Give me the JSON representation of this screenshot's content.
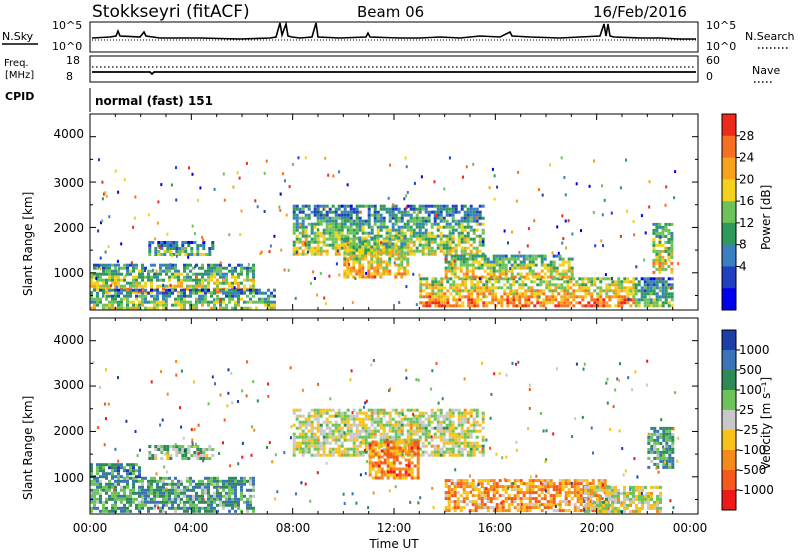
{
  "header": {
    "station": "Stokkseyri (fitACF)",
    "beam": "Beam 06",
    "date": "16/Feb/2016"
  },
  "top_panels": {
    "nsky_label": "N.Sky",
    "nsky_ticks": [
      "10^5",
      "10^0"
    ],
    "nsearch_label": "N.Search",
    "nsearch_ticks": [
      "10^5",
      "10^0"
    ],
    "freq_label": "Freq.",
    "freq_unit": "[MHz]",
    "freq_ticks": [
      "18",
      "8"
    ],
    "nave_label": "Nave",
    "nave_ticks": [
      "60",
      "0"
    ],
    "cpid_label": "CPID",
    "cpid_value": "normal (fast) 151"
  },
  "x_axis": {
    "label": "Time UT",
    "ticks": [
      "00:00",
      "04:00",
      "08:00",
      "12:00",
      "16:00",
      "20:00",
      "00:00"
    ]
  },
  "chart_data": [
    {
      "type": "heatmap",
      "panel": "power",
      "ylabel": "Slant Range [km]",
      "xlabel": "",
      "yticks": [
        "4000",
        "3000",
        "2000",
        "1000"
      ],
      "ylim": [
        180,
        4500
      ],
      "xlim_hours": [
        0,
        24
      ],
      "colorbar_label": "Power [dB]",
      "colorbar_ticks": [
        "28",
        "24",
        "20",
        "16",
        "12",
        "8",
        "4"
      ],
      "colorbar_colors": [
        "#0000ee",
        "#2040c0",
        "#3a7fbf",
        "#2e9a5a",
        "#6cc35a",
        "#f2d21b",
        "#f7a21a",
        "#f57020",
        "#ee2a1a"
      ],
      "regions": [
        {
          "x0": 0.0,
          "x1": 6.5,
          "r0": 600,
          "r1": 1200,
          "level": 0.55
        },
        {
          "x0": 0.0,
          "x1": 7.3,
          "r0": 250,
          "r1": 650,
          "level": 0.4
        },
        {
          "x0": 2.3,
          "x1": 4.8,
          "r0": 1400,
          "r1": 1700,
          "level": 0.3
        },
        {
          "x0": 8.0,
          "x1": 15.5,
          "r0": 1400,
          "r1": 2500,
          "level": 0.45
        },
        {
          "x0": 10.0,
          "x1": 12.5,
          "r0": 900,
          "r1": 1800,
          "level": 0.7
        },
        {
          "x0": 13.0,
          "x1": 21.5,
          "r0": 250,
          "r1": 900,
          "level": 0.85
        },
        {
          "x0": 14.0,
          "x1": 19.0,
          "r0": 900,
          "r1": 1400,
          "level": 0.6
        },
        {
          "x0": 21.5,
          "x1": 23.0,
          "r0": 250,
          "r1": 900,
          "level": 0.35
        },
        {
          "x0": 22.2,
          "x1": 23.0,
          "r0": 1000,
          "r1": 2100,
          "level": 0.6
        }
      ]
    },
    {
      "type": "heatmap",
      "panel": "velocity",
      "ylabel": "Slant Range [km]",
      "xlabel": "Time UT",
      "yticks": [
        "4000",
        "3000",
        "2000",
        "1000"
      ],
      "ylim": [
        180,
        4500
      ],
      "xlim_hours": [
        0,
        24
      ],
      "colorbar_label": "Velocity [m s⁻¹]",
      "colorbar_ticks": [
        "1000",
        "500",
        "100",
        "25",
        "-25",
        "-100",
        "-500",
        "-1000"
      ],
      "colorbar_colors": [
        "#1b3fa6",
        "#3a73b8",
        "#2e8a55",
        "#6cc35a",
        "#c8c8c8",
        "#f7c21a",
        "#f58a1a",
        "#f55a1a",
        "#ee1a1a"
      ],
      "regions": [
        {
          "x0": 0.0,
          "x1": 6.5,
          "r0": 250,
          "r1": 1000,
          "level": 0.3
        },
        {
          "x0": 0.0,
          "x1": 2.0,
          "r0": 1000,
          "r1": 1300,
          "level": 0.25
        },
        {
          "x0": 2.3,
          "x1": 4.8,
          "r0": 1400,
          "r1": 1700,
          "level": 0.4
        },
        {
          "x0": 8.0,
          "x1": 15.5,
          "r0": 1500,
          "r1": 2500,
          "level": 0.5
        },
        {
          "x0": 11.0,
          "x1": 13.0,
          "r0": 1000,
          "r1": 1800,
          "level": 0.75
        },
        {
          "x0": 14.0,
          "x1": 20.5,
          "r0": 250,
          "r1": 950,
          "level": 0.7
        },
        {
          "x0": 19.5,
          "x1": 22.5,
          "r0": 250,
          "r1": 800,
          "level": 0.5
        },
        {
          "x0": 22.0,
          "x1": 23.0,
          "r0": 1200,
          "r1": 2100,
          "level": 0.3
        }
      ]
    }
  ]
}
